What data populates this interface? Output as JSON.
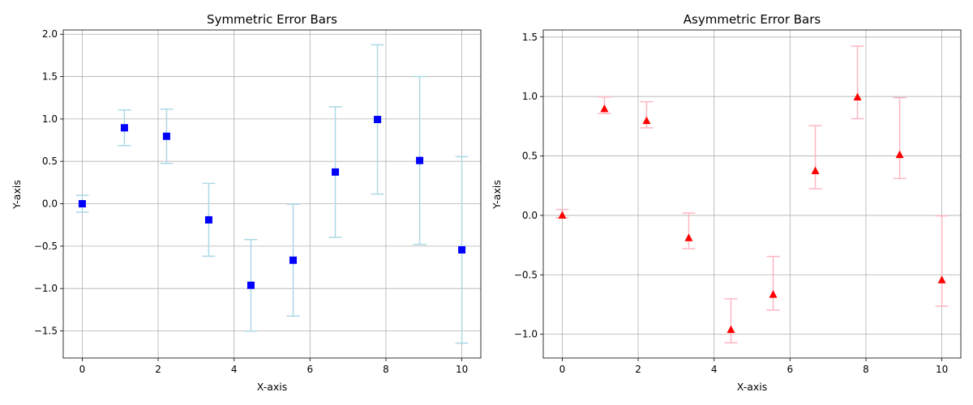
{
  "chart_data": [
    {
      "type": "scatter",
      "title": "Symmetric Error Bars",
      "xlabel": "X-axis",
      "ylabel": "Y-axis",
      "xlim": [
        -0.5,
        10.5
      ],
      "ylim": [
        -1.82,
        2.05
      ],
      "xticks": [
        0,
        2,
        4,
        6,
        8,
        10
      ],
      "xtick_labels": [
        "0",
        "2",
        "4",
        "6",
        "8",
        "10"
      ],
      "yticks": [
        -1.5,
        -1.0,
        -0.5,
        0.0,
        0.5,
        1.0,
        1.5,
        2.0
      ],
      "ytick_labels": [
        "−1.5",
        "−1.0",
        "−0.5",
        "0.0",
        "0.5",
        "1.0",
        "1.5",
        "2.0"
      ],
      "grid": true,
      "marker": "square",
      "marker_color": "#0000ff",
      "errorbar_color": "#add8e6",
      "series": [
        {
          "x": [
            0,
            1.111,
            2.222,
            3.333,
            4.444,
            5.556,
            6.667,
            7.778,
            8.889,
            10
          ],
          "y": [
            0.0,
            0.896,
            0.796,
            -0.19,
            -0.962,
            -0.666,
            0.374,
            0.994,
            0.51,
            -0.544
          ],
          "yerr": [
            0.1,
            0.21,
            0.32,
            0.43,
            0.54,
            0.66,
            0.77,
            0.88,
            0.99,
            1.1
          ]
        }
      ]
    },
    {
      "type": "scatter",
      "title": "Asymmetric Error Bars",
      "xlabel": "X-axis",
      "ylabel": "Y-axis",
      "xlim": [
        -0.5,
        10.5
      ],
      "ylim": [
        -1.2,
        1.56
      ],
      "xticks": [
        0,
        2,
        4,
        6,
        8,
        10
      ],
      "xtick_labels": [
        "0",
        "2",
        "4",
        "6",
        "8",
        "10"
      ],
      "yticks": [
        -1.0,
        -0.5,
        0.0,
        0.5,
        1.0,
        1.5
      ],
      "ytick_labels": [
        "−1.0",
        "−0.5",
        "0.0",
        "0.5",
        "1.0",
        "1.5"
      ],
      "grid": true,
      "marker": "triangle",
      "marker_color": "#ff0000",
      "errorbar_color": "#ffb6c1",
      "series": [
        {
          "x": [
            0,
            1.111,
            2.222,
            3.333,
            4.444,
            5.556,
            6.667,
            7.778,
            8.889,
            10
          ],
          "y": [
            0.0,
            0.896,
            0.796,
            -0.19,
            -0.962,
            -0.666,
            0.374,
            0.994,
            0.51,
            -0.544
          ],
          "yerr_lower": [
            0.02,
            0.04,
            0.06,
            0.09,
            0.11,
            0.13,
            0.15,
            0.18,
            0.2,
            0.22
          ],
          "yerr_upper": [
            0.05,
            0.1,
            0.16,
            0.21,
            0.26,
            0.32,
            0.38,
            0.43,
            0.48,
            0.54
          ]
        }
      ]
    }
  ]
}
